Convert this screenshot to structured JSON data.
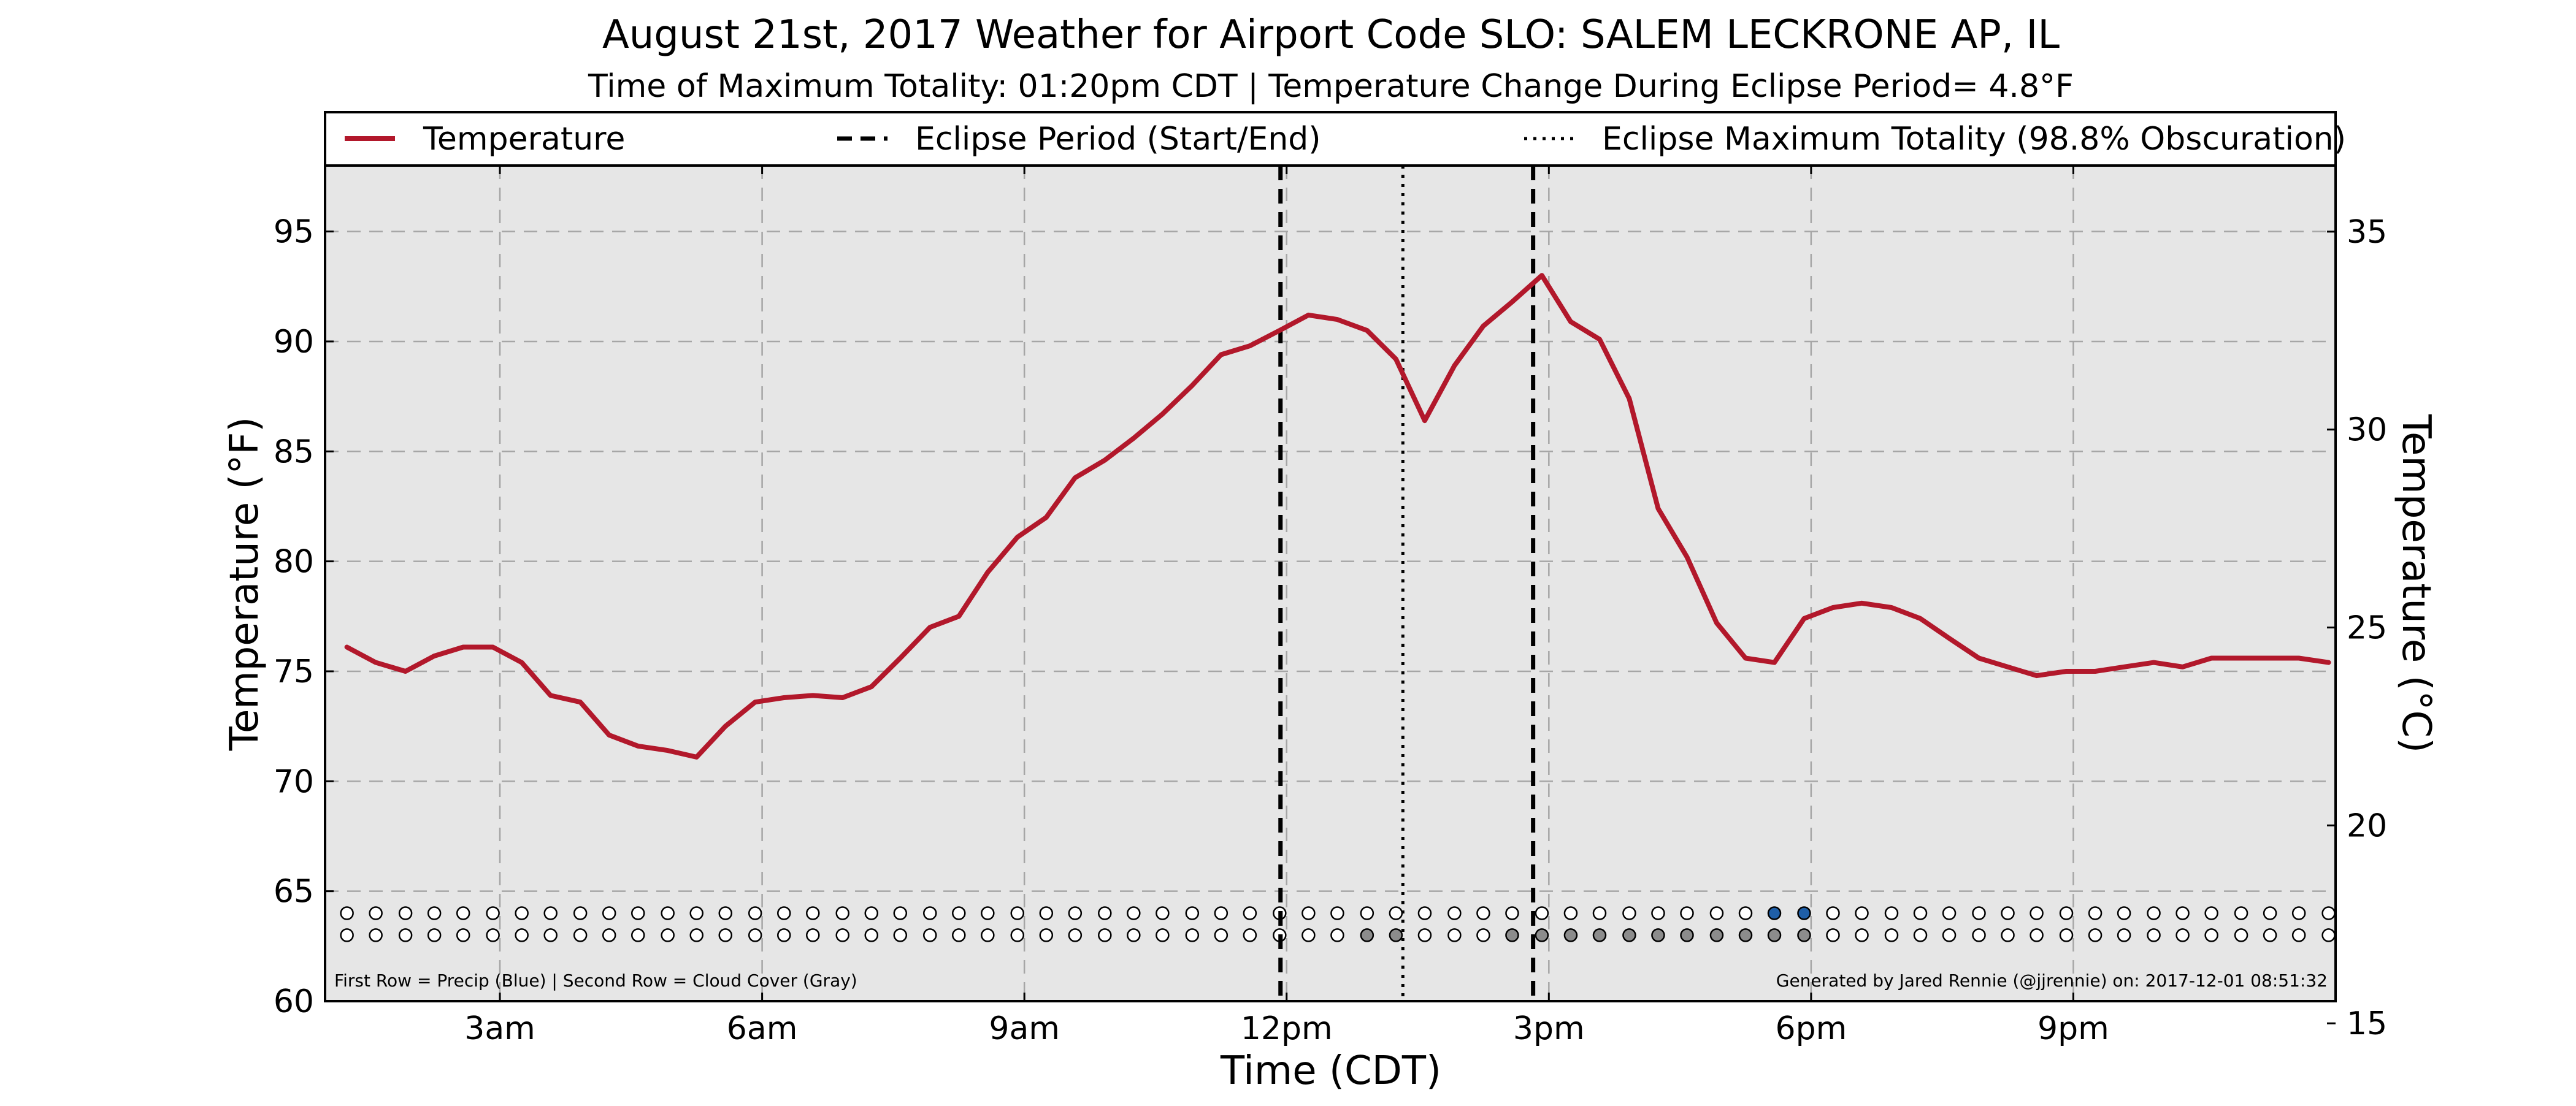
{
  "chart_data": {
    "type": "line",
    "title": "August 21st, 2017 Weather for Airport Code SLO: SALEM LECKRONE AP, IL",
    "subtitle": "Time of Maximum Totality: 01:20pm CDT | Temperature Change During Eclipse Period= 4.8°F",
    "xlabel": "Time (CDT)",
    "ylabel": "Temperature (°F)",
    "ylabel_right": "Temperature (°C)",
    "x_units": "hours after midnight CDT",
    "xlim": [
      1,
      24
    ],
    "ylim": [
      60,
      98
    ],
    "ylim_right_celsius": [
      15.56,
      36.67
    ],
    "x_ticks": [
      3,
      6,
      9,
      12,
      15,
      18,
      21
    ],
    "x_tick_labels": [
      "3am",
      "6am",
      "9am",
      "12pm",
      "3pm",
      "6pm",
      "9pm"
    ],
    "y_ticks": [
      60,
      65,
      70,
      75,
      80,
      85,
      90,
      95
    ],
    "y_tick_labels": [
      "60",
      "65",
      "70",
      "75",
      "80",
      "85",
      "90",
      "95"
    ],
    "y_right_ticks": [
      15,
      20,
      25,
      30,
      35
    ],
    "y_right_tick_labels": [
      "15",
      "20",
      "25",
      "30",
      "35"
    ],
    "grid": true,
    "legend_position": "top, above plot",
    "legend": [
      {
        "label": "Temperature",
        "style": "solid",
        "color": "#b2182b"
      },
      {
        "label": "Eclipse Period (Start/End)",
        "style": "dashed",
        "color": "#000000"
      },
      {
        "label": "Eclipse Maximum Totality (98.8% Obscuration)",
        "style": "dotted",
        "color": "#000000"
      }
    ],
    "series": [
      {
        "name": "Temperature",
        "color": "#b2182b",
        "x": [
          1.25,
          1.58,
          1.92,
          2.25,
          2.58,
          2.92,
          3.25,
          3.58,
          3.92,
          4.25,
          4.58,
          4.92,
          5.25,
          5.58,
          5.92,
          6.25,
          6.58,
          6.92,
          7.25,
          7.58,
          7.92,
          8.25,
          8.58,
          8.92,
          9.25,
          9.58,
          9.92,
          10.25,
          10.58,
          10.92,
          11.25,
          11.58,
          11.92,
          12.25,
          12.58,
          12.92,
          13.25,
          13.58,
          13.92,
          14.25,
          14.58,
          14.92,
          15.25,
          15.58,
          15.92,
          16.25,
          16.58,
          16.92,
          17.25,
          17.58,
          17.92,
          18.25,
          18.58,
          18.92,
          19.25,
          19.58,
          19.92,
          20.25,
          20.58,
          20.92,
          21.25,
          21.58,
          21.92,
          22.25,
          22.58,
          22.92,
          23.25,
          23.58,
          23.92
        ],
        "y": [
          76.1,
          75.4,
          75.0,
          75.7,
          76.1,
          76.1,
          75.4,
          73.9,
          73.6,
          72.1,
          71.6,
          71.4,
          71.1,
          72.5,
          73.6,
          73.8,
          73.9,
          73.8,
          74.3,
          75.6,
          77.0,
          77.5,
          79.5,
          81.1,
          82.0,
          83.8,
          84.6,
          85.6,
          86.7,
          88.0,
          89.4,
          89.8,
          90.5,
          91.2,
          91.0,
          90.5,
          89.2,
          86.4,
          88.9,
          90.7,
          91.8,
          93.0,
          90.9,
          90.1,
          87.4,
          82.4,
          80.2,
          77.2,
          75.6,
          75.4,
          77.4,
          77.9,
          78.1,
          77.9,
          77.4,
          76.5,
          75.6,
          75.2,
          74.8,
          75.0,
          75.0,
          75.2,
          75.4,
          75.2,
          75.6,
          75.6,
          75.6,
          75.6,
          75.4
        ]
      }
    ],
    "eclipse_period": {
      "start": 11.93,
      "end": 14.82,
      "line_color": "#000000"
    },
    "max_totality": {
      "time": 13.33,
      "label": "01:20pm CDT",
      "obscuration_percent": 98.8
    },
    "precip_row": {
      "description": "First Row = Precip (Blue)",
      "y_level": 64,
      "x": [
        1.25,
        1.58,
        1.92,
        2.25,
        2.58,
        2.92,
        3.25,
        3.58,
        3.92,
        4.25,
        4.58,
        4.92,
        5.25,
        5.58,
        5.92,
        6.25,
        6.58,
        6.92,
        7.25,
        7.58,
        7.92,
        8.25,
        8.58,
        8.92,
        9.25,
        9.58,
        9.92,
        10.25,
        10.58,
        10.92,
        11.25,
        11.58,
        11.92,
        12.25,
        12.58,
        12.92,
        13.25,
        13.58,
        13.92,
        14.25,
        14.58,
        14.92,
        15.25,
        15.58,
        15.92,
        16.25,
        16.58,
        16.92,
        17.25,
        17.58,
        17.92,
        18.25,
        18.58,
        18.92,
        19.25,
        19.58,
        19.92,
        20.25,
        20.58,
        20.92,
        21.25,
        21.58,
        21.92,
        22.25,
        22.58,
        22.92,
        23.25,
        23.58,
        23.92
      ],
      "filled_x": [
        17.58,
        17.92
      ],
      "filled_color": "#1f5fa8",
      "empty_color": "#ffffff"
    },
    "cloud_row": {
      "description": "Second Row = Cloud Cover (Gray)",
      "y_level": 63,
      "x": [
        1.25,
        1.58,
        1.92,
        2.25,
        2.58,
        2.92,
        3.25,
        3.58,
        3.92,
        4.25,
        4.58,
        4.92,
        5.25,
        5.58,
        5.92,
        6.25,
        6.58,
        6.92,
        7.25,
        7.58,
        7.92,
        8.25,
        8.58,
        8.92,
        9.25,
        9.58,
        9.92,
        10.25,
        10.58,
        10.92,
        11.25,
        11.58,
        11.92,
        12.25,
        12.58,
        12.92,
        13.25,
        13.58,
        13.92,
        14.25,
        14.58,
        14.92,
        15.25,
        15.58,
        15.92,
        16.25,
        16.58,
        16.92,
        17.25,
        17.58,
        17.92,
        18.25,
        18.58,
        18.92,
        19.25,
        19.58,
        19.92,
        20.25,
        20.58,
        20.92,
        21.25,
        21.58,
        21.92,
        22.25,
        22.58,
        22.92,
        23.25,
        23.58,
        23.92
      ],
      "filled_x": [
        12.92,
        13.25,
        14.58,
        14.92,
        15.25,
        15.58,
        15.92,
        16.25,
        16.58,
        16.92,
        17.25,
        17.58,
        17.92
      ],
      "filled_color": "#8c8c8c",
      "empty_color": "#ffffff"
    },
    "footer_left": "First Row = Precip (Blue) | Second Row = Cloud Cover (Gray)",
    "footer_right": "Generated by Jared Rennie (@jjrennie) on: 2017-12-01 08:51:32",
    "background_color": "#e6e6e6"
  }
}
